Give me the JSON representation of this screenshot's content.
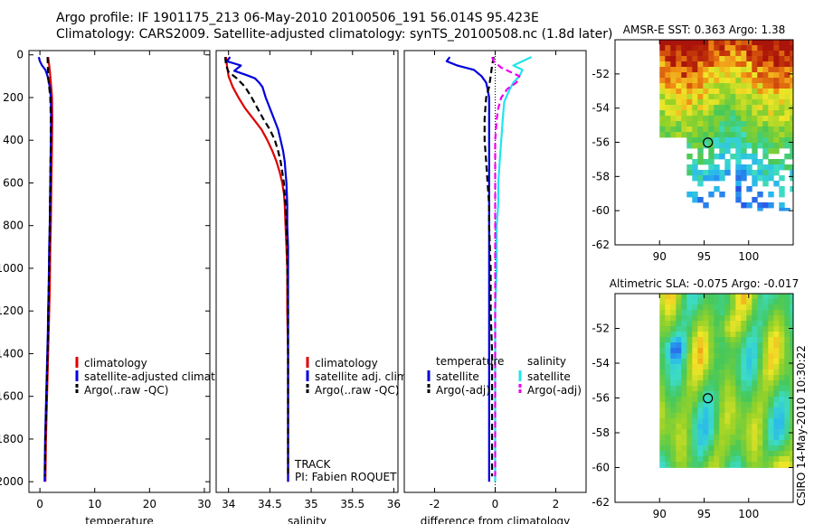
{
  "header": {
    "line1": "Argo profile: IF 1901175_213 06-May-2010 20100506_191 56.014S 95.423E",
    "line2": "Climatology: CARS2009. Satellite-adjusted climatology: synTS_20100508.nc (1.8d later)"
  },
  "footer": {
    "track": "TRACK",
    "pi": "PI: Fabien ROQUET",
    "stamp": "CSIRO 14-May-2010 10:30:22"
  },
  "colors": {
    "climatology": "#dd0000",
    "satellite": "#0000dd",
    "argo": "#000000",
    "satellite_salinity": "#22e5ee",
    "argo_salinity": "#ee00ee"
  },
  "chart_data": [
    {
      "type": "line",
      "title": "",
      "xlabel": "temperature",
      "ylabel": "",
      "xlim": [
        -2,
        31
      ],
      "ylim": [
        2050,
        -20
      ],
      "xticks": [
        0,
        10,
        20,
        30
      ],
      "yticks": [
        0,
        200,
        400,
        600,
        800,
        1000,
        1200,
        1400,
        1600,
        1800,
        2000
      ],
      "legend": [
        "climatology",
        "satellite-adjusted climatology",
        "Argo(..raw -QC)"
      ],
      "series": [
        {
          "name": "climatology",
          "color": "#dd0000",
          "width": 2.2,
          "dash": "",
          "points": [
            [
              1.5,
              10
            ],
            [
              1.6,
              30
            ],
            [
              1.7,
              50
            ],
            [
              1.8,
              70
            ],
            [
              1.9,
              100
            ],
            [
              2.0,
              130
            ],
            [
              2.1,
              160
            ],
            [
              2.2,
              200
            ],
            [
              2.25,
              300
            ],
            [
              2.2,
              400
            ],
            [
              2.15,
              500
            ],
            [
              2.1,
              600
            ],
            [
              2.05,
              700
            ],
            [
              2.0,
              800
            ],
            [
              1.9,
              900
            ],
            [
              1.85,
              1000
            ],
            [
              1.8,
              1100
            ],
            [
              1.7,
              1200
            ],
            [
              1.6,
              1300
            ],
            [
              1.5,
              1400
            ],
            [
              1.4,
              1500
            ],
            [
              1.3,
              1600
            ],
            [
              1.2,
              1700
            ],
            [
              1.1,
              1800
            ],
            [
              1.05,
              1900
            ],
            [
              1.0,
              2000
            ]
          ]
        },
        {
          "name": "satellite-adjusted climatology",
          "color": "#0000dd",
          "width": 2.2,
          "dash": "",
          "points": [
            [
              -0.2,
              10
            ],
            [
              0.0,
              30
            ],
            [
              0.4,
              50
            ],
            [
              1.0,
              70
            ],
            [
              1.4,
              100
            ],
            [
              1.8,
              150
            ],
            [
              2.0,
              200
            ],
            [
              2.05,
              300
            ],
            [
              2.0,
              400
            ],
            [
              1.95,
              500
            ],
            [
              1.9,
              600
            ],
            [
              1.85,
              700
            ],
            [
              1.8,
              800
            ],
            [
              1.7,
              900
            ],
            [
              1.65,
              1000
            ],
            [
              1.6,
              1100
            ],
            [
              1.5,
              1200
            ],
            [
              1.45,
              1300
            ],
            [
              1.35,
              1400
            ],
            [
              1.25,
              1500
            ],
            [
              1.15,
              1600
            ],
            [
              1.05,
              1700
            ],
            [
              0.95,
              1800
            ],
            [
              0.9,
              1900
            ],
            [
              0.85,
              2000
            ]
          ]
        },
        {
          "name": "Argo(..raw -QC)",
          "color": "#000000",
          "width": 2.2,
          "dash": "7,4",
          "points": [
            [
              1.4,
              10
            ],
            [
              1.45,
              50
            ],
            [
              1.5,
              100
            ],
            [
              1.7,
              150
            ],
            [
              1.9,
              200
            ],
            [
              2.0,
              300
            ],
            [
              2.0,
              400
            ],
            [
              1.95,
              500
            ],
            [
              1.9,
              600
            ],
            [
              1.85,
              700
            ],
            [
              1.8,
              800
            ],
            [
              1.75,
              900
            ],
            [
              1.7,
              1000
            ],
            [
              1.6,
              1100
            ],
            [
              1.55,
              1200
            ],
            [
              1.5,
              1300
            ],
            [
              1.4,
              1400
            ],
            [
              1.3,
              1500
            ],
            [
              1.2,
              1600
            ],
            [
              1.1,
              1700
            ],
            [
              1.0,
              1800
            ],
            [
              0.95,
              1900
            ],
            [
              0.9,
              1975
            ]
          ]
        }
      ]
    },
    {
      "type": "line",
      "title": "",
      "xlabel": "salinity",
      "ylabel": "",
      "xlim": [
        33.85,
        36.05
      ],
      "ylim": [
        2050,
        -20
      ],
      "xticks": [
        34,
        34.5,
        35,
        35.5,
        36
      ],
      "yticks": [],
      "legend": [
        "climatology",
        "satellite adj. clim.",
        "Argo(..raw -QC)"
      ],
      "series": [
        {
          "name": "climatology",
          "color": "#dd0000",
          "width": 2.2,
          "dash": "",
          "points": [
            [
              33.97,
              10
            ],
            [
              33.98,
              50
            ],
            [
              34.0,
              100
            ],
            [
              34.05,
              150
            ],
            [
              34.12,
              200
            ],
            [
              34.2,
              250
            ],
            [
              34.3,
              300
            ],
            [
              34.4,
              350
            ],
            [
              34.47,
              400
            ],
            [
              34.53,
              450
            ],
            [
              34.58,
              500
            ],
            [
              34.62,
              550
            ],
            [
              34.65,
              600
            ],
            [
              34.67,
              650
            ],
            [
              34.68,
              700
            ],
            [
              34.69,
              800
            ],
            [
              34.7,
              900
            ],
            [
              34.71,
              1000
            ],
            [
              34.71,
              1200
            ],
            [
              34.72,
              1400
            ],
            [
              34.72,
              1600
            ],
            [
              34.72,
              1800
            ],
            [
              34.72,
              2000
            ]
          ]
        },
        {
          "name": "satellite adj. clim.",
          "color": "#0000dd",
          "width": 2.2,
          "dash": "",
          "points": [
            [
              34.02,
              10
            ],
            [
              33.98,
              30
            ],
            [
              34.15,
              50
            ],
            [
              34.07,
              75
            ],
            [
              34.22,
              95
            ],
            [
              34.32,
              110
            ],
            [
              34.37,
              130
            ],
            [
              34.41,
              150
            ],
            [
              34.45,
              200
            ],
            [
              34.5,
              250
            ],
            [
              34.55,
              300
            ],
            [
              34.6,
              350
            ],
            [
              34.63,
              400
            ],
            [
              34.66,
              450
            ],
            [
              34.68,
              500
            ],
            [
              34.69,
              550
            ],
            [
              34.7,
              600
            ],
            [
              34.71,
              700
            ],
            [
              34.71,
              800
            ],
            [
              34.72,
              900
            ],
            [
              34.72,
              1000
            ],
            [
              34.72,
              1200
            ],
            [
              34.72,
              1400
            ],
            [
              34.72,
              1600
            ],
            [
              34.72,
              1800
            ],
            [
              34.72,
              2000
            ]
          ]
        },
        {
          "name": "Argo(..raw -QC)",
          "color": "#000000",
          "width": 2.2,
          "dash": "7,4",
          "points": [
            [
              33.96,
              10
            ],
            [
              33.97,
              50
            ],
            [
              34.0,
              80
            ],
            [
              34.1,
              110
            ],
            [
              34.2,
              150
            ],
            [
              34.28,
              200
            ],
            [
              34.35,
              250
            ],
            [
              34.42,
              300
            ],
            [
              34.5,
              350
            ],
            [
              34.56,
              400
            ],
            [
              34.6,
              450
            ],
            [
              34.63,
              500
            ],
            [
              34.65,
              550
            ],
            [
              34.67,
              600
            ],
            [
              34.68,
              650
            ],
            [
              34.69,
              700
            ],
            [
              34.7,
              800
            ],
            [
              34.71,
              900
            ],
            [
              34.71,
              1000
            ],
            [
              34.72,
              1200
            ],
            [
              34.72,
              1400
            ],
            [
              34.72,
              1600
            ],
            [
              34.72,
              1800
            ],
            [
              34.72,
              1975
            ]
          ]
        }
      ]
    },
    {
      "type": "line",
      "title": "",
      "xlabel": "difference from climatology",
      "ylabel": "",
      "xlim": [
        -3,
        3
      ],
      "ylim": [
        2050,
        -20
      ],
      "xticks": [
        -2,
        0,
        2
      ],
      "yticks": [],
      "legend": [
        "temperature",
        "satellite",
        "Argo(-adj)",
        "salinity",
        "satellite",
        "Argo(-adj)"
      ],
      "series": [
        {
          "name": "temperature satellite",
          "color": "#0000dd",
          "width": 2.2,
          "dash": "",
          "points": [
            [
              -1.5,
              10
            ],
            [
              -1.6,
              30
            ],
            [
              -1.25,
              50
            ],
            [
              -0.7,
              70
            ],
            [
              -0.45,
              100
            ],
            [
              -0.3,
              130
            ],
            [
              -0.25,
              160
            ],
            [
              -0.2,
              200
            ],
            [
              -0.2,
              300
            ],
            [
              -0.2,
              400
            ],
            [
              -0.2,
              500
            ],
            [
              -0.2,
              600
            ],
            [
              -0.2,
              700
            ],
            [
              -0.2,
              800
            ],
            [
              -0.2,
              1000
            ],
            [
              -0.2,
              1200
            ],
            [
              -0.2,
              1400
            ],
            [
              -0.2,
              1600
            ],
            [
              -0.2,
              1800
            ],
            [
              -0.2,
              2000
            ]
          ]
        },
        {
          "name": "temperature Argo(-adj)",
          "color": "#000000",
          "width": 2.2,
          "dash": "7,4",
          "points": [
            [
              -0.05,
              10
            ],
            [
              -0.1,
              50
            ],
            [
              -0.15,
              100
            ],
            [
              -0.2,
              150
            ],
            [
              -0.3,
              200
            ],
            [
              -0.35,
              300
            ],
            [
              -0.35,
              400
            ],
            [
              -0.3,
              500
            ],
            [
              -0.25,
              600
            ],
            [
              -0.2,
              700
            ],
            [
              -0.2,
              800
            ],
            [
              -0.15,
              1000
            ],
            [
              -0.15,
              1200
            ],
            [
              -0.1,
              1400
            ],
            [
              -0.1,
              1600
            ],
            [
              -0.1,
              1800
            ],
            [
              -0.1,
              1975
            ]
          ]
        },
        {
          "name": "salinity satellite",
          "color": "#22e5ee",
          "width": 2.2,
          "dash": "",
          "points": [
            [
              1.2,
              10
            ],
            [
              0.9,
              30
            ],
            [
              0.6,
              50
            ],
            [
              0.9,
              70
            ],
            [
              0.8,
              100
            ],
            [
              0.6,
              130
            ],
            [
              0.45,
              170
            ],
            [
              0.3,
              220
            ],
            [
              0.25,
              300
            ],
            [
              0.2,
              400
            ],
            [
              0.15,
              500
            ],
            [
              0.1,
              600
            ],
            [
              0.1,
              700
            ],
            [
              0.05,
              800
            ],
            [
              0.05,
              1000
            ],
            [
              0.0,
              1200
            ],
            [
              0.0,
              1400
            ],
            [
              0.0,
              1600
            ],
            [
              0.0,
              1800
            ],
            [
              0.0,
              2000
            ]
          ]
        },
        {
          "name": "salinity Argo(-adj)",
          "color": "#ee00ee",
          "width": 2.2,
          "dash": "7,4",
          "points": [
            [
              -0.1,
              10
            ],
            [
              -0.05,
              30
            ],
            [
              0.2,
              60
            ],
            [
              0.5,
              80
            ],
            [
              0.8,
              100
            ],
            [
              0.7,
              130
            ],
            [
              0.4,
              160
            ],
            [
              0.2,
              200
            ],
            [
              0.1,
              250
            ],
            [
              0.05,
              300
            ],
            [
              0.0,
              400
            ],
            [
              0.0,
              600
            ],
            [
              0.0,
              800
            ],
            [
              0.0,
              1000
            ],
            [
              0.0,
              1200
            ],
            [
              0.0,
              1400
            ],
            [
              0.0,
              1600
            ],
            [
              0.0,
              1800
            ],
            [
              0.0,
              1975
            ]
          ]
        }
      ]
    },
    {
      "type": "heatmap",
      "title": "AMSR-E SST: 0.363 Argo: 1.38",
      "xlabel": "",
      "ylabel": "",
      "xlim": [
        85,
        105
      ],
      "ylim": [
        -62,
        -50
      ],
      "xticks": [
        90,
        95,
        100
      ],
      "yticks": [
        -52,
        -54,
        -56,
        -58,
        -60,
        -62
      ],
      "marker": [
        95.423,
        -56.014
      ]
    },
    {
      "type": "heatmap",
      "title": "Altimetric SLA: -0.075 Argo: -0.017",
      "xlabel": "",
      "ylabel": "",
      "xlim": [
        85,
        105
      ],
      "ylim": [
        -62,
        -50
      ],
      "xticks": [
        90,
        95,
        100
      ],
      "yticks": [
        -52,
        -54,
        -56,
        -58,
        -60,
        -62
      ],
      "marker": [
        95.423,
        -56.014
      ]
    }
  ]
}
